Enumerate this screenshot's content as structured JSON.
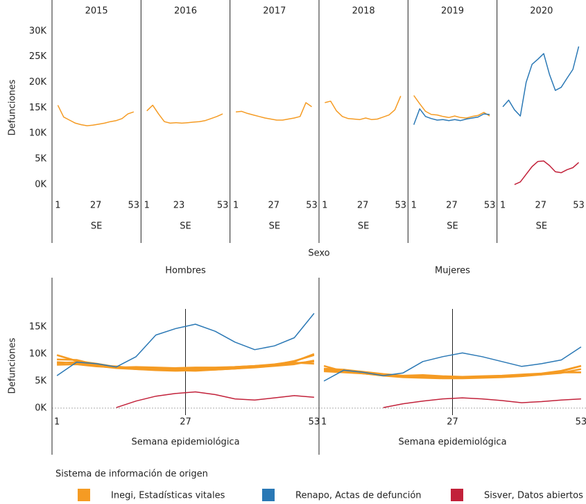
{
  "chart_data": [
    {
      "type": "line",
      "y_label": "Defunciones",
      "x_label": "SE",
      "ylim": [
        -2200,
        31600
      ],
      "yticks": [
        {
          "value": 0,
          "label": "0K"
        },
        {
          "value": 5000,
          "label": "5K"
        },
        {
          "value": 10000,
          "label": "10K"
        },
        {
          "value": 15000,
          "label": "15K"
        },
        {
          "value": 20000,
          "label": "20K"
        },
        {
          "value": 25000,
          "label": "25K"
        },
        {
          "value": 30000,
          "label": "30K"
        }
      ],
      "xlim": [
        -3,
        58
      ],
      "panels": [
        {
          "title": "2015",
          "xticks": [
            1,
            27,
            53
          ],
          "x": [
            1,
            5,
            9,
            13,
            17,
            21,
            25,
            29,
            33,
            37,
            41,
            45,
            49,
            53
          ],
          "series": [
            {
              "color": "#f59b23",
              "values": [
                15500,
                13200,
                12600,
                12000,
                11700,
                11500,
                11600,
                11800,
                12000,
                12300,
                12500,
                12900,
                13800,
                14200
              ]
            }
          ]
        },
        {
          "title": "2016",
          "xticks": [
            1,
            23,
            53
          ],
          "x": [
            1,
            5,
            9,
            13,
            17,
            21,
            25,
            29,
            33,
            37,
            41,
            45,
            49,
            53
          ],
          "series": [
            {
              "color": "#f59b23",
              "values": [
                14400,
                15500,
                13800,
                12300,
                12000,
                12100,
                12000,
                12100,
                12200,
                12300,
                12500,
                12900,
                13300,
                13800
              ]
            }
          ]
        },
        {
          "title": "2017",
          "xticks": [
            1,
            27,
            53
          ],
          "x": [
            1,
            5,
            9,
            13,
            17,
            21,
            25,
            29,
            33,
            37,
            41,
            45,
            49,
            53
          ],
          "series": [
            {
              "color": "#f59b23",
              "values": [
                14200,
                14300,
                13900,
                13600,
                13300,
                13000,
                12800,
                12600,
                12600,
                12800,
                13000,
                13300,
                16000,
                15200
              ]
            }
          ]
        },
        {
          "title": "2018",
          "xticks": [
            1,
            27,
            53
          ],
          "x": [
            1,
            5,
            9,
            13,
            17,
            21,
            25,
            29,
            33,
            37,
            41,
            45,
            49,
            53
          ],
          "series": [
            {
              "color": "#f59b23",
              "values": [
                16000,
                16300,
                14400,
                13300,
                12900,
                12800,
                12700,
                13000,
                12700,
                12800,
                13200,
                13600,
                14600,
                17300
              ]
            }
          ]
        },
        {
          "title": "2019",
          "xticks": [
            1,
            27,
            53
          ],
          "x": [
            1,
            5,
            9,
            13,
            17,
            21,
            25,
            29,
            33,
            37,
            41,
            45,
            49,
            53
          ],
          "series": [
            {
              "color": "#f59b23",
              "values": [
                17400,
                15800,
                14300,
                13700,
                13600,
                13300,
                13100,
                13400,
                13100,
                13000,
                13300,
                13500,
                14100,
                13400
              ]
            },
            {
              "color": "#2a78b5",
              "values": [
                11700,
                14800,
                13300,
                12900,
                12600,
                12700,
                12500,
                12700,
                12500,
                12800,
                13000,
                13200,
                13800,
                13700
              ]
            }
          ]
        },
        {
          "title": "2020",
          "xticks": [
            1,
            27,
            53
          ],
          "x": [
            1,
            5,
            9,
            13,
            17,
            21,
            25,
            29,
            33,
            37,
            41,
            45,
            49,
            53
          ],
          "series": [
            {
              "color": "#2a78b5",
              "values": [
                15200,
                16500,
                14600,
                13400,
                20000,
                23500,
                24500,
                25600,
                21500,
                18400,
                19000,
                20800,
                22500,
                27000
              ]
            },
            {
              "color": "#c2213a",
              "values": [
                null,
                null,
                0,
                500,
                2000,
                3500,
                4500,
                4600,
                3700,
                2500,
                2300,
                2900,
                3300,
                4300
              ]
            }
          ]
        }
      ]
    },
    {
      "type": "line",
      "facet_title": "Sexo",
      "y_label": "Defunciones",
      "ylim": [
        -1300,
        24100
      ],
      "yticks": [
        {
          "value": 0,
          "label": "0K"
        },
        {
          "value": 5000,
          "label": "5K"
        },
        {
          "value": 10000,
          "label": "10K"
        },
        {
          "value": 15000,
          "label": "15K"
        }
      ],
      "xlim": [
        0,
        54
      ],
      "vline": 27,
      "panels": [
        {
          "title": "Hombres",
          "x_label": "Semana epidemiológica",
          "xticks": [
            1,
            27,
            53
          ],
          "x": [
            1,
            5,
            9,
            13,
            17,
            21,
            25,
            29,
            33,
            37,
            41,
            45,
            49,
            53
          ],
          "series": [
            {
              "color": "#f59b23",
              "values": [
                9800,
                8700,
                8200,
                7600,
                7200,
                7000,
                6900,
                7000,
                7100,
                7300,
                7600,
                8000,
                8700,
                9800
              ]
            },
            {
              "color": "#f59b23",
              "values": [
                9000,
                8900,
                8000,
                7500,
                7300,
                7200,
                7100,
                7200,
                7200,
                7400,
                7600,
                7900,
                8400,
                8200
              ]
            },
            {
              "color": "#f59b23",
              "values": [
                8500,
                8300,
                7800,
                7400,
                7200,
                7100,
                7000,
                6900,
                7100,
                7300,
                7500,
                7800,
                8100,
                8800
              ]
            },
            {
              "color": "#f59b23",
              "values": [
                8300,
                8500,
                7900,
                7700,
                7300,
                7400,
                7300,
                7200,
                7400,
                7600,
                7800,
                8100,
                8600,
                10000
              ]
            },
            {
              "color": "#f59b23",
              "values": [
                8000,
                8100,
                7700,
                7500,
                7600,
                7500,
                7400,
                7500,
                7500,
                7600,
                7800,
                8000,
                8300,
                8600
              ]
            },
            {
              "color": "#2a78b5",
              "values": [
                6000,
                8500,
                8200,
                7600,
                9500,
                13500,
                14700,
                15500,
                14200,
                12200,
                10800,
                11500,
                13000,
                17500
              ]
            },
            {
              "color": "#c2213a",
              "values": [
                null,
                null,
                null,
                100,
                1300,
                2200,
                2700,
                3000,
                2500,
                1700,
                1500,
                1900,
                2300,
                2000
              ]
            }
          ]
        },
        {
          "title": "Mujeres",
          "x_label": "Semana epidemiológica",
          "xticks": [
            1,
            27,
            53
          ],
          "x": [
            1,
            5,
            9,
            13,
            17,
            21,
            25,
            29,
            33,
            37,
            41,
            45,
            49,
            53
          ],
          "series": [
            {
              "color": "#f59b23",
              "values": [
                7800,
                6800,
                6400,
                6000,
                5700,
                5600,
                5500,
                5500,
                5600,
                5700,
                5900,
                6200,
                6800,
                7800
              ]
            },
            {
              "color": "#f59b23",
              "values": [
                7200,
                7000,
                6600,
                6200,
                5900,
                5800,
                5700,
                5700,
                5800,
                5800,
                6000,
                6300,
                6600,
                6600
              ]
            },
            {
              "color": "#f59b23",
              "values": [
                7000,
                6900,
                6400,
                6100,
                5800,
                5700,
                5600,
                5600,
                5700,
                5800,
                6000,
                6200,
                6500,
                7200
              ]
            },
            {
              "color": "#f59b23",
              "values": [
                7300,
                7100,
                6700,
                6300,
                6000,
                6100,
                5900,
                5800,
                5900,
                6000,
                6200,
                6400,
                6900,
                7800
              ]
            },
            {
              "color": "#f59b23",
              "values": [
                6800,
                6600,
                6400,
                6100,
                5900,
                5800,
                5700,
                5800,
                5800,
                5900,
                6100,
                6300,
                6600,
                6600
              ]
            },
            {
              "color": "#2a78b5",
              "values": [
                5000,
                7000,
                6600,
                6000,
                6500,
                8600,
                9500,
                10200,
                9500,
                8600,
                7700,
                8200,
                8900,
                11300
              ]
            },
            {
              "color": "#c2213a",
              "values": [
                null,
                null,
                null,
                100,
                800,
                1300,
                1700,
                1900,
                1700,
                1400,
                1000,
                1200,
                1500,
                1700
              ]
            }
          ]
        }
      ]
    }
  ],
  "legend": {
    "title": "Sistema de información de origen",
    "items": [
      {
        "name": "Inegi, Estadísticas vitales",
        "color": "#f59b23"
      },
      {
        "name": "Renapo, Actas de defunción",
        "color": "#2a78b5"
      },
      {
        "name": "Sisver, Datos abiertos",
        "color": "#c2213a"
      }
    ]
  }
}
